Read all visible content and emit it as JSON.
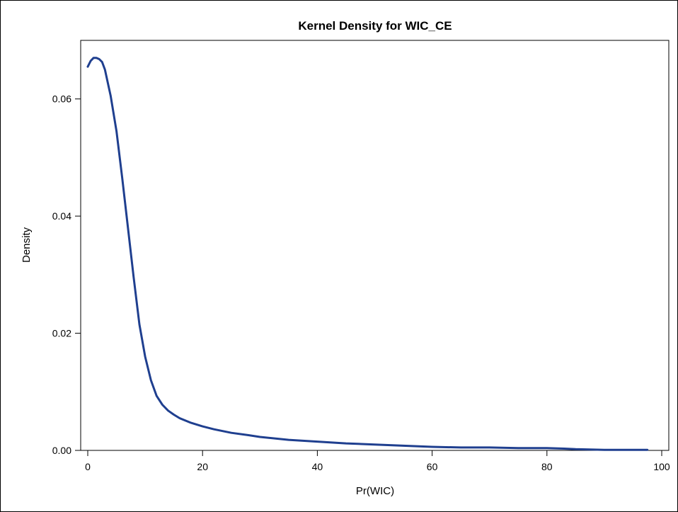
{
  "chart_data": {
    "type": "line",
    "title": "Kernel Density for WIC_CE",
    "xlabel": "Pr(WIC)",
    "ylabel": "Density",
    "xlim": [
      0,
      100
    ],
    "ylim": [
      0,
      0.07
    ],
    "x_ticks": [
      "0",
      "20",
      "40",
      "60",
      "80",
      "100"
    ],
    "y_ticks": [
      "0.00",
      "0.02",
      "0.04",
      "0.06"
    ],
    "grid": false,
    "line_color": "#1f3f8f",
    "series": [
      {
        "x": [
          0,
          0.5,
          1,
          1.5,
          2,
          2.5,
          3,
          4,
          5,
          6,
          7,
          8,
          9,
          10,
          11,
          12,
          13,
          14,
          15,
          16,
          18,
          20,
          22,
          25,
          28,
          30,
          35,
          40,
          45,
          50,
          55,
          60,
          65,
          70,
          75,
          80,
          83,
          85,
          90,
          95,
          97.5
        ],
        "y": [
          0.0655,
          0.0665,
          0.067,
          0.067,
          0.0668,
          0.0663,
          0.065,
          0.0605,
          0.0545,
          0.0465,
          0.038,
          0.0295,
          0.0215,
          0.016,
          0.012,
          0.0093,
          0.0078,
          0.0068,
          0.0061,
          0.0055,
          0.0047,
          0.0041,
          0.0036,
          0.003,
          0.0026,
          0.0023,
          0.0018,
          0.0015,
          0.0012,
          0.001,
          0.0008,
          0.0006,
          0.0005,
          0.0005,
          0.0004,
          0.0004,
          0.0003,
          0.0002,
          0.0001,
          0.0001,
          0.0001
        ]
      }
    ]
  }
}
